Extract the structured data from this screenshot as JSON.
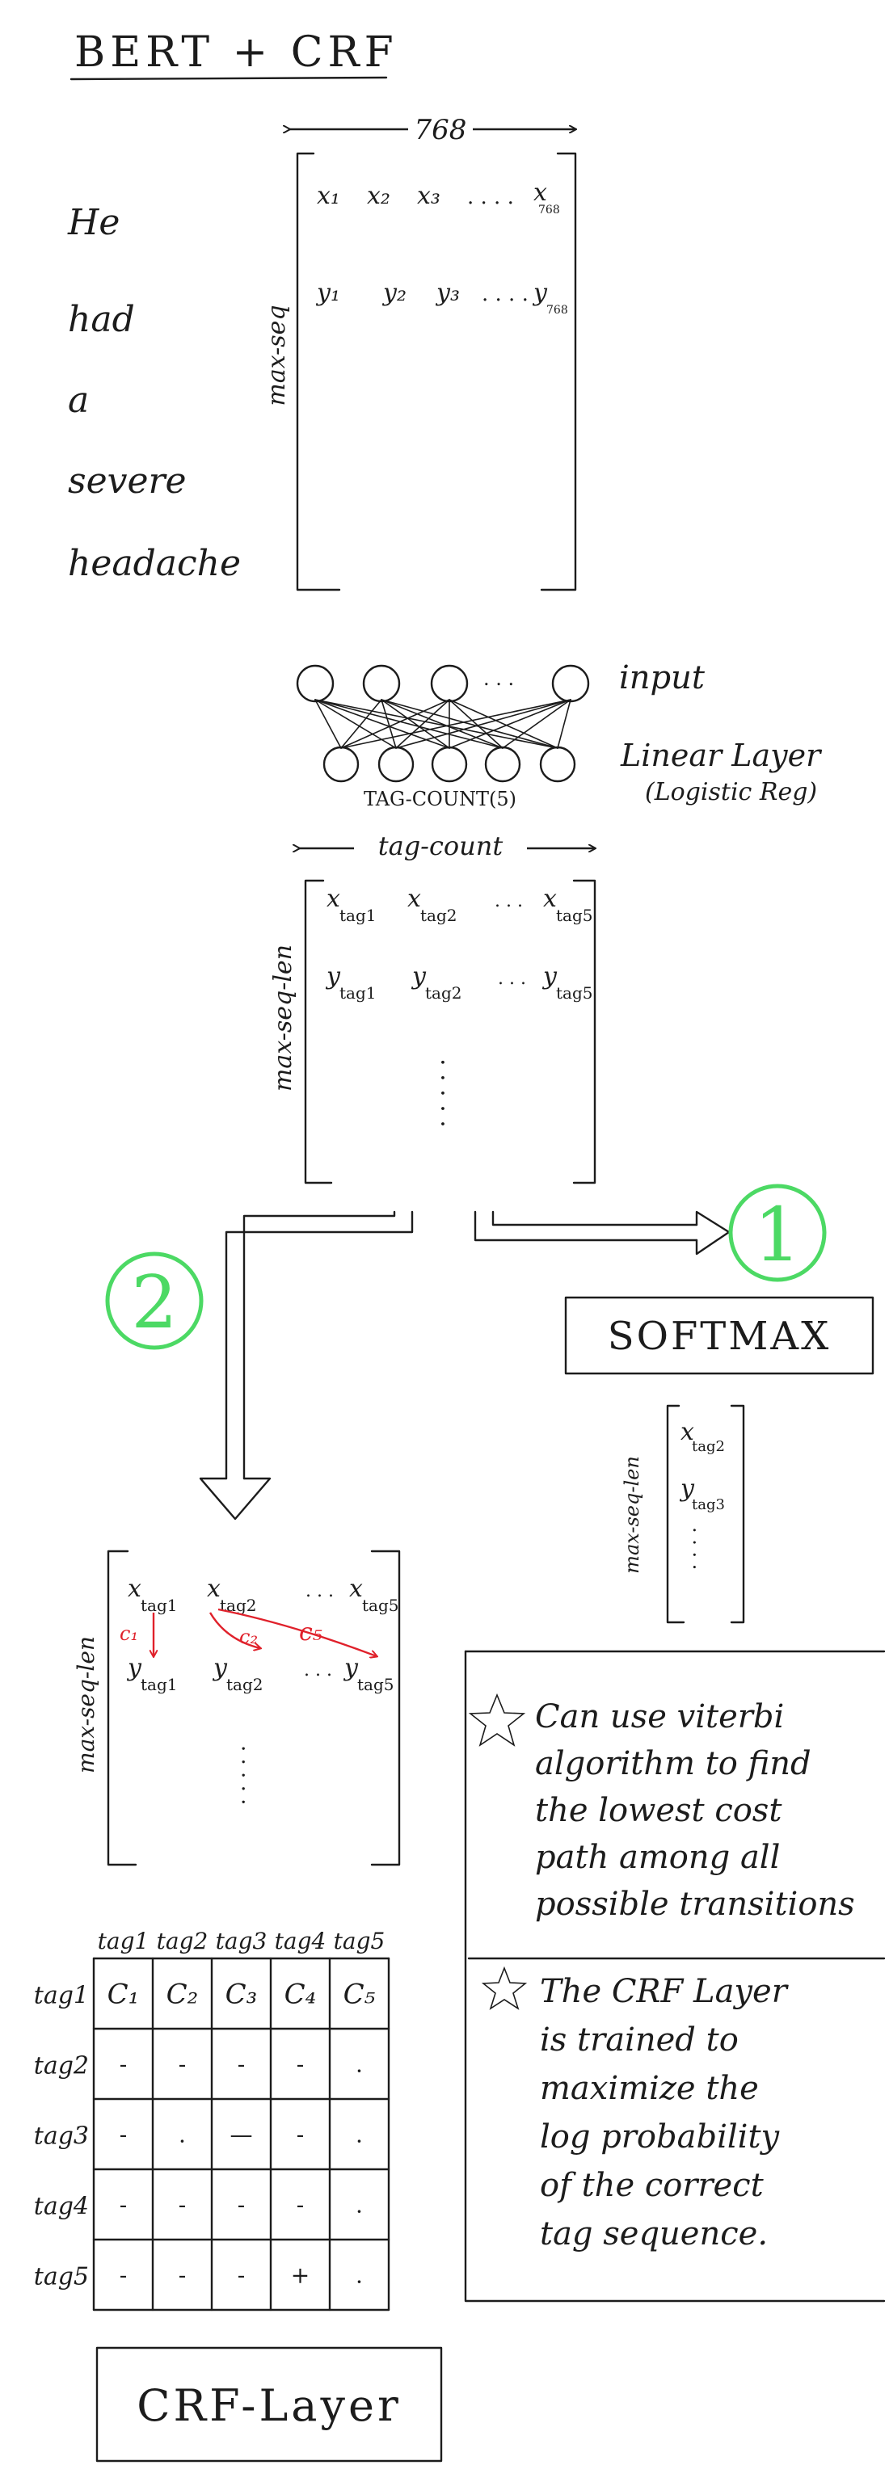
{
  "title": "BERT + CRF",
  "bert": {
    "width_label": "768",
    "height_label": "max-seq",
    "words": [
      "He",
      "had",
      "a",
      "severe",
      "headache"
    ],
    "row1": [
      "x₁",
      "x₂",
      "x₃",
      ". . . .",
      "x"
    ],
    "row1_last_sub": "768",
    "row2": [
      "y₁",
      "y₂",
      "y₃",
      ". . . .",
      "y"
    ],
    "row2_last_sub": "768"
  },
  "linear": {
    "input_label": "input",
    "dots": ". . .",
    "count_label": "TAG-COUNT(5)",
    "layer_label": "Linear Layer",
    "layer_sub": "(Logistic Reg)"
  },
  "emission": {
    "width_label": "tag-count",
    "height_label": "max-seq-len",
    "row1": [
      {
        "base": "x",
        "sub": "tag1"
      },
      {
        "base": "x",
        "sub": "tag2"
      },
      {
        "base": ". . .",
        "sub": ""
      },
      {
        "base": "x",
        "sub": "tag5"
      }
    ],
    "row2": [
      {
        "base": "y",
        "sub": "tag1"
      },
      {
        "base": "y",
        "sub": "tag2"
      },
      {
        "base": ". . .",
        "sub": ""
      },
      {
        "base": "y",
        "sub": "tag5"
      }
    ]
  },
  "branch1": {
    "number": "1",
    "box_label": "SOFTMAX",
    "height_label": "max-seq-len",
    "row1": {
      "base": "x",
      "sub": "tag2"
    },
    "row2": {
      "base": "y",
      "sub": "tag3"
    }
  },
  "branch2": {
    "number": "2",
    "height_label": "max-seq-len",
    "row1": [
      {
        "base": "x",
        "sub": "tag1"
      },
      {
        "base": "x",
        "sub": "tag2"
      },
      {
        "base": ". . .",
        "sub": ""
      },
      {
        "base": "x",
        "sub": "tag5"
      }
    ],
    "row2": [
      {
        "base": "y",
        "sub": "tag1"
      },
      {
        "base": "y",
        "sub": "tag2"
      },
      {
        "base": ". . .",
        "sub": ""
      },
      {
        "base": "y",
        "sub": "tag5"
      }
    ],
    "cost_labels": [
      "c₁",
      "c₂",
      "c₅"
    ],
    "cost_color": "#e0212b"
  },
  "notes": [
    "Can use viterbi algorithm to find the lowest cost path among all possible transitions",
    "The CRF Layer is trained to maximize the log probability of the correct tag sequence."
  ],
  "note_lines": [
    [
      "Can use viterbi",
      "algorithm to find",
      "the lowest cost",
      "path among all",
      "possible transitions"
    ],
    [
      "The CRF Layer",
      "is trained to",
      "maximize the",
      "log probability",
      "of the correct",
      "tag sequence."
    ]
  ],
  "transition_table": {
    "columns": [
      "tag1",
      "tag2",
      "tag3",
      "tag4",
      "tag5"
    ],
    "rows": [
      "tag1",
      "tag2",
      "tag3",
      "tag4",
      "tag5"
    ],
    "first_row": [
      "C₁",
      "C₂",
      "C₃",
      "C₄",
      "C₅"
    ],
    "cells": [
      [
        "-",
        "-",
        "-",
        "-",
        "."
      ],
      [
        "-",
        ".",
        "—",
        "-",
        "."
      ],
      [
        "-",
        "-",
        "-",
        "-",
        "."
      ],
      [
        "-",
        "-",
        "-",
        "+",
        "."
      ]
    ]
  },
  "crf_box_label": "CRF-Layer",
  "circle_color": "#4cd964"
}
